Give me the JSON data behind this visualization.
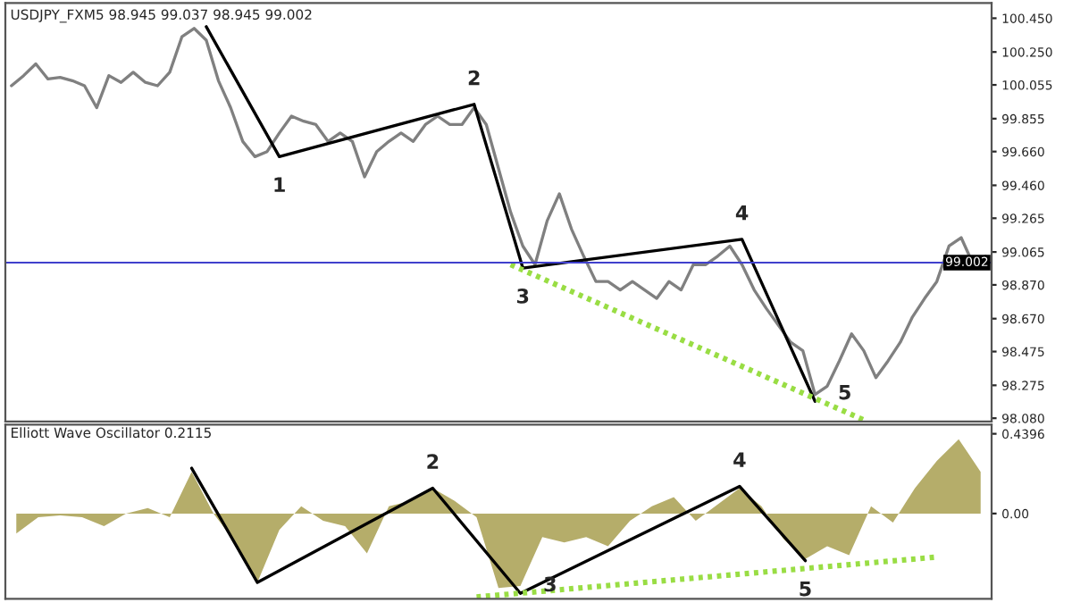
{
  "chart_data": [
    {
      "type": "line",
      "title": "USDJPY_FXM5 98.945 99.037 98.945 99.002",
      "tick_labels": "y",
      "grid": false,
      "categories": [
        null,
        null,
        null,
        null,
        null,
        null,
        null,
        null,
        null,
        null,
        null,
        null,
        null,
        null,
        null,
        null,
        null,
        null,
        null,
        null,
        null,
        null,
        null,
        null,
        null,
        null,
        null,
        null,
        null,
        null,
        null,
        null,
        null,
        null,
        null,
        null,
        null,
        null,
        null,
        null,
        null,
        null,
        null,
        null,
        null,
        null,
        null,
        null,
        null,
        null,
        null,
        null,
        null,
        null,
        null,
        null,
        null,
        null,
        null,
        null,
        null,
        null,
        null,
        null,
        null,
        null,
        null,
        null,
        null,
        null,
        null,
        null,
        null,
        null,
        null,
        null,
        null,
        null,
        null,
        null,
        null
      ],
      "ylim": [
        98.06,
        100.54
      ],
      "yticks": [
        {
          "value": 98.08,
          "label": "98.080"
        },
        98.275,
        98.475,
        {
          "value": 98.67,
          "label": "98.670"
        },
        {
          "value": 98.87,
          "label": "98.870"
        },
        99.065,
        99.265,
        {
          "value": 99.46,
          "label": "99.460"
        },
        {
          "value": 99.66,
          "label": "99.660"
        },
        99.855,
        100.055,
        {
          "value": 100.25,
          "label": "100.250"
        },
        {
          "value": 100.45,
          "label": "100.450"
        }
      ],
      "series": [
        {
          "color": "#808080",
          "values": [
            100.05,
            100.11,
            100.18,
            100.09,
            100.1,
            100.08,
            100.05,
            99.92,
            100.11,
            100.07,
            100.13,
            100.07,
            100.05,
            100.13,
            100.34,
            100.39,
            100.32,
            100.08,
            99.92,
            99.72,
            99.63,
            99.66,
            99.77,
            99.87,
            99.84,
            99.82,
            99.72,
            99.77,
            99.72,
            99.51,
            99.66,
            99.72,
            99.77,
            99.72,
            99.82,
            99.87,
            99.82,
            99.82,
            99.92,
            99.82,
            99.56,
            99.3,
            99.1,
            98.99,
            99.25,
            99.41,
            99.2,
            99.04,
            98.89,
            98.89,
            98.84,
            98.89,
            98.84,
            98.79,
            98.89,
            98.84,
            98.99,
            98.99,
            99.04,
            99.1,
            98.99,
            98.84,
            98.73,
            98.63,
            98.53,
            98.48,
            98.22,
            98.27,
            98.42,
            98.58,
            98.48,
            98.32,
            98.42,
            98.53,
            98.68,
            98.79,
            98.89,
            99.1,
            99.15,
            98.99,
            99.04
          ]
        },
        {
          "type": "line",
          "color": "#000000",
          "values": [
            null,
            null,
            null,
            null,
            null,
            null,
            null,
            null,
            null,
            null,
            null,
            null,
            null,
            null,
            null,
            null,
            100.4,
            null,
            null,
            null,
            null,
            null,
            99.63,
            null,
            null,
            null,
            null,
            null,
            null,
            null,
            null,
            null,
            null,
            null,
            null,
            null,
            null,
            null,
            99.94,
            null,
            null,
            null,
            98.97,
            null,
            null,
            null,
            null,
            null,
            null,
            null,
            null,
            null,
            null,
            null,
            null,
            null,
            null,
            null,
            null,
            null,
            99.14,
            null,
            null,
            null,
            null,
            null,
            98.18,
            null,
            null,
            null,
            null,
            null,
            null,
            null,
            null,
            null,
            null,
            null,
            null,
            null,
            null
          ]
        },
        {
          "type": "line",
          "color": "#99dd44",
          "line_style": "dotted",
          "values": [
            null,
            null,
            null,
            null,
            null,
            null,
            null,
            null,
            null,
            null,
            null,
            null,
            null,
            null,
            null,
            null,
            null,
            null,
            null,
            null,
            null,
            null,
            null,
            null,
            null,
            null,
            null,
            null,
            null,
            null,
            null,
            null,
            null,
            null,
            null,
            null,
            null,
            null,
            null,
            null,
            null,
            98.99,
            null,
            null,
            null,
            null,
            null,
            null,
            null,
            null,
            null,
            null,
            null,
            null,
            null,
            null,
            null,
            null,
            null,
            null,
            null,
            null,
            null,
            null,
            null,
            null,
            null,
            null,
            null,
            null,
            98.07,
            null,
            null,
            null,
            null,
            null,
            null,
            null,
            null,
            null,
            null
          ]
        }
      ],
      "ref_lines": [
        {
          "axis": "y",
          "value": 99.002,
          "label": "99.002",
          "color": "#4040cc"
        }
      ],
      "annotations": [
        "1",
        "2",
        "3",
        "4",
        "5"
      ]
    },
    {
      "type": "area",
      "title": "Elliott Wave Oscillator 0.2115",
      "tick_labels": "y",
      "grid": false,
      "categories": [
        null,
        null,
        null,
        null,
        null,
        null,
        null,
        null,
        null,
        null,
        null,
        null,
        null,
        null,
        null,
        null,
        null,
        null,
        null,
        null,
        null,
        null,
        null,
        null,
        null,
        null,
        null,
        null,
        null,
        null,
        null,
        null,
        null,
        null,
        null,
        null,
        null,
        null,
        null,
        null,
        null,
        null,
        null,
        null,
        null
      ],
      "ylim": [
        -0.47,
        0.49
      ],
      "yticks": [
        {
          "value": 0.4396,
          "label": "0.4396"
        },
        {
          "value": 0,
          "label": "0.00"
        }
      ],
      "series": [
        {
          "color": "#b5ad6a",
          "values": [
            -0.11,
            -0.02,
            -0.01,
            -0.02,
            -0.07,
            0,
            0.03,
            -0.02,
            0.23,
            0,
            -0.16,
            -0.38,
            -0.09,
            0.04,
            -0.04,
            -0.07,
            -0.22,
            0.04,
            0.07,
            0.14,
            0.07,
            -0.02,
            -0.41,
            -0.4,
            -0.13,
            -0.16,
            -0.13,
            -0.18,
            -0.04,
            0.04,
            0.09,
            -0.04,
            0.05,
            0.14,
            0.04,
            -0.14,
            -0.25,
            -0.18,
            -0.23,
            0.04,
            -0.05,
            0.14,
            0.29,
            0.41,
            0.23
          ]
        },
        {
          "type": "line",
          "color": "#000000",
          "values": [
            null,
            null,
            null,
            null,
            null,
            null,
            null,
            null,
            0.25,
            null,
            null,
            -0.38,
            null,
            null,
            null,
            null,
            null,
            null,
            null,
            0.14,
            null,
            null,
            null,
            -0.44,
            null,
            null,
            null,
            null,
            null,
            null,
            null,
            null,
            null,
            0.15,
            null,
            null,
            -0.26,
            null,
            null,
            null,
            null,
            null,
            null,
            null,
            null
          ]
        },
        {
          "type": "line",
          "color": "#99dd44",
          "line_style": "dotted",
          "values": [
            null,
            null,
            null,
            null,
            null,
            null,
            null,
            null,
            null,
            null,
            null,
            null,
            null,
            null,
            null,
            null,
            null,
            null,
            null,
            null,
            null,
            -0.46,
            null,
            null,
            null,
            null,
            null,
            null,
            null,
            null,
            null,
            null,
            null,
            null,
            null,
            null,
            null,
            null,
            null,
            null,
            null,
            null,
            -0.24,
            null,
            null
          ]
        }
      ],
      "annotations": [
        "2",
        "3",
        "4",
        "5"
      ]
    }
  ]
}
